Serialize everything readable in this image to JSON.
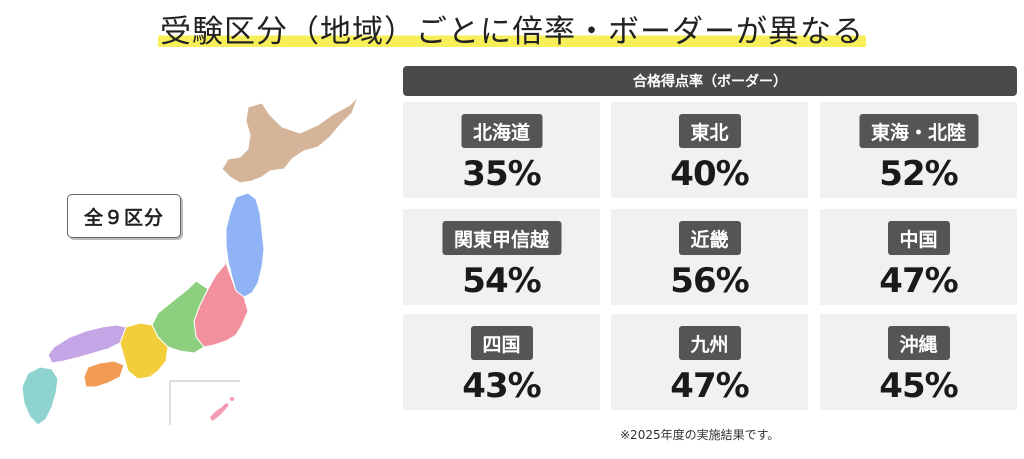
{
  "title": "受験区分（地域）ごとに倍率・ボーダーが異なる",
  "badge": "全９区分",
  "table_header": "合格得点率（ボーダー）",
  "regions": [
    {
      "name": "北海道",
      "rate": "35%"
    },
    {
      "name": "東北",
      "rate": "40%"
    },
    {
      "name": "東海・北陸",
      "rate": "52%"
    },
    {
      "name": "関東甲信越",
      "rate": "54%"
    },
    {
      "name": "近畿",
      "rate": "56%"
    },
    {
      "name": "中国",
      "rate": "47%"
    },
    {
      "name": "四国",
      "rate": "43%"
    },
    {
      "name": "九州",
      "rate": "47%"
    },
    {
      "name": "沖縄",
      "rate": "45%"
    }
  ],
  "footnote": "※2025年度の実施結果です。",
  "colors": {
    "highlight": "#f7ef5a",
    "header_bg": "#4a4a4a",
    "tag_bg": "#555555",
    "cell_bg": "#f1f1f1",
    "hokkaido": "#d4b59a",
    "tohoku": "#8fb3f5",
    "kanto": "#f2919d",
    "chubu": "#8ccf7e",
    "kinki": "#f2cd3c",
    "chugoku": "#c4a6e6",
    "shikoku": "#f29b54",
    "kyushu": "#8fd3d0",
    "okinawa": "#f39bb0"
  }
}
